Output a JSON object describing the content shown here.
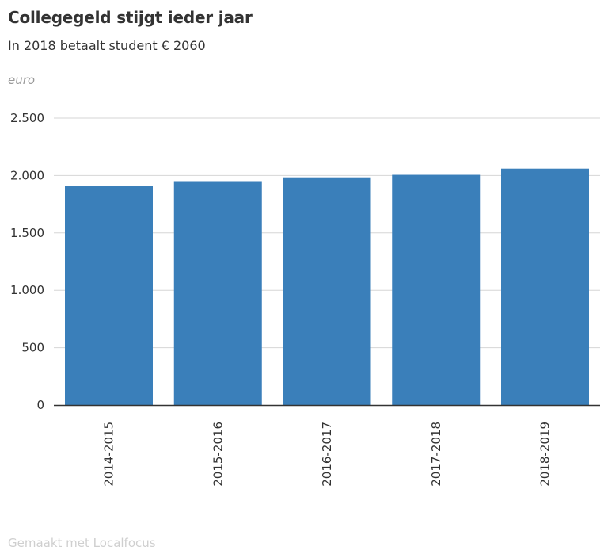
{
  "header": {
    "title": "Collegegeld stijgt ieder jaar",
    "subtitle": "In 2018 betaalt student € 2060",
    "unit_label": "euro"
  },
  "footer": {
    "credit": "Gemaakt met Localfocus"
  },
  "colors": {
    "bar": "#3a7fba",
    "grid": "#d6d6d6",
    "axis": "#333333"
  },
  "chart_data": {
    "type": "bar",
    "title": "Collegegeld stijgt ieder jaar",
    "subtitle": "In 2018 betaalt student € 2060",
    "xlabel": "",
    "ylabel": "euro",
    "categories": [
      "2014-2015",
      "2015-2016",
      "2016-2017",
      "2017-2018",
      "2018-2019"
    ],
    "values": [
      1906,
      1951,
      1984,
      2006,
      2060
    ],
    "ylim": [
      0,
      2500
    ],
    "yticks": [
      0,
      500,
      1000,
      1500,
      2000,
      2500
    ],
    "ytick_labels": [
      "0",
      "500",
      "1.000",
      "1.500",
      "2.000",
      "2.500"
    ],
    "grid": true,
    "legend": "none"
  }
}
